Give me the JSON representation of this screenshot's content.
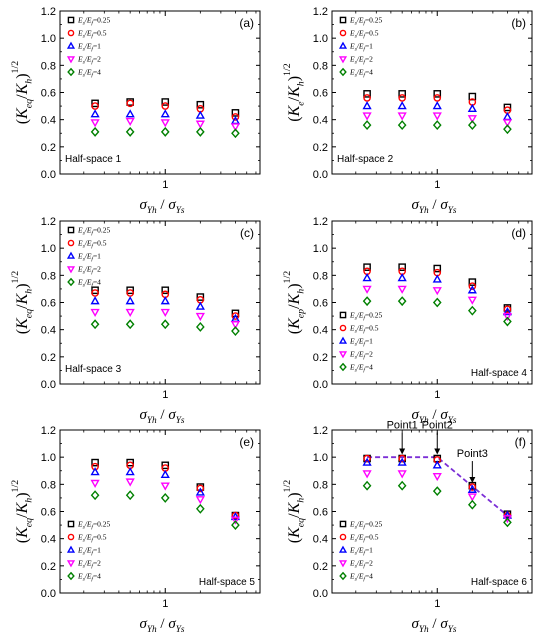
{
  "figure": {
    "colors": {
      "black": "#000000",
      "red": "#ff0000",
      "blue": "#0000ff",
      "magenta": "#ff00ff",
      "green": "#008000",
      "trend": "#7b2fd6"
    }
  },
  "chart_data": [
    {
      "panel": "(a)",
      "type": "scatter",
      "x": [
        0.25,
        0.5,
        1,
        2,
        4
      ],
      "xtick_labels": [
        "1"
      ],
      "ylim": [
        0,
        1.2
      ],
      "yticks": [
        "0.0",
        "0.2",
        "0.4",
        "0.6",
        "0.8",
        "1.0",
        "1.2"
      ],
      "ylabel": {
        "open": "(",
        "K": "K",
        "sub1": "eq",
        "slash": "/",
        "K2": "K",
        "sub2": "h",
        "close": ")",
        "exp": "1/2"
      },
      "xlabel": {
        "s1": "σ",
        "sub1": "Yh",
        "slash": " / ",
        "s2": "σ",
        "sub2": "Ys"
      },
      "legend_position": "top-left",
      "legend": [
        "E_s/E_f=0.25",
        "E_s/E_f=0.5",
        "E_s/E_f=1",
        "E_s/E_f=2",
        "E_s/E_f=4"
      ],
      "note": "Half-space 1",
      "note_position": "bottom-left",
      "series": [
        {
          "name": "E_s/E_f=0.25",
          "marker": "square",
          "values": [
            0.52,
            0.53,
            0.53,
            0.51,
            0.45
          ]
        },
        {
          "name": "E_s/E_f=0.5",
          "marker": "circle",
          "values": [
            0.5,
            0.52,
            0.5,
            0.48,
            0.42
          ]
        },
        {
          "name": "E_s/E_f=1",
          "marker": "triangle-up",
          "values": [
            0.44,
            0.44,
            0.44,
            0.43,
            0.39
          ]
        },
        {
          "name": "E_s/E_f=2",
          "marker": "triangle-down",
          "values": [
            0.38,
            0.39,
            0.38,
            0.37,
            0.35
          ]
        },
        {
          "name": "E_s/E_f=4",
          "marker": "diamond",
          "values": [
            0.31,
            0.31,
            0.31,
            0.31,
            0.3
          ]
        }
      ]
    },
    {
      "panel": "(b)",
      "type": "scatter",
      "x": [
        0.25,
        0.5,
        1,
        2,
        4
      ],
      "xtick_labels": [
        "1"
      ],
      "ylim": [
        0,
        1.2
      ],
      "yticks": [
        "0.0",
        "0.2",
        "0.4",
        "0.6",
        "0.8",
        "1.0",
        "1.2"
      ],
      "ylabel": {
        "open": "(",
        "K": "K",
        "sub1": "e",
        "slash": "/",
        "K2": "K",
        "sub2": "h",
        "close": ")",
        "exp": "1/2"
      },
      "xlabel": {
        "s1": "σ",
        "sub1": "Yh",
        "slash": " / ",
        "s2": "σ",
        "sub2": "Ys"
      },
      "legend_position": "top-left",
      "legend": [
        "E_s/E_f=0.25",
        "E_s/E_f=0.5",
        "E_s/E_f=1",
        "E_s/E_f=2",
        "E_s/E_f=4"
      ],
      "note": "Half-space 2",
      "note_position": "bottom-left",
      "series": [
        {
          "name": "E_s/E_f=0.25",
          "marker": "square",
          "values": [
            0.59,
            0.59,
            0.59,
            0.57,
            0.49
          ]
        },
        {
          "name": "E_s/E_f=0.5",
          "marker": "circle",
          "values": [
            0.56,
            0.56,
            0.56,
            0.53,
            0.47
          ]
        },
        {
          "name": "E_s/E_f=1",
          "marker": "triangle-up",
          "values": [
            0.5,
            0.5,
            0.5,
            0.48,
            0.42
          ]
        },
        {
          "name": "E_s/E_f=2",
          "marker": "triangle-down",
          "values": [
            0.43,
            0.43,
            0.43,
            0.41,
            0.38
          ]
        },
        {
          "name": "E_s/E_f=4",
          "marker": "diamond",
          "values": [
            0.36,
            0.36,
            0.36,
            0.36,
            0.33
          ]
        }
      ]
    },
    {
      "panel": "(c)",
      "type": "scatter",
      "x": [
        0.25,
        0.5,
        1,
        2,
        4
      ],
      "xtick_labels": [
        "1"
      ],
      "ylim": [
        0,
        1.2
      ],
      "yticks": [
        "0.0",
        "0.2",
        "0.4",
        "0.6",
        "0.8",
        "1.0",
        "1.2"
      ],
      "ylabel": {
        "open": "(",
        "K": "K",
        "sub1": "eq",
        "slash": "/",
        "K2": "K",
        "sub2": "h",
        "close": ")",
        "exp": "1/2"
      },
      "xlabel": {
        "s1": "σ",
        "sub1": "Yh",
        "slash": " / ",
        "s2": "σ",
        "sub2": "Ys"
      },
      "legend_position": "top-left",
      "legend": [
        "E_s/E_f=0.25",
        "E_s/E_f=0.5",
        "E_s/E_f=1",
        "E_s/E_f=2",
        "E_s/E_f=4"
      ],
      "note": "Half-space 3",
      "note_position": "bottom-left",
      "series": [
        {
          "name": "E_s/E_f=0.25",
          "marker": "square",
          "values": [
            0.69,
            0.69,
            0.69,
            0.64,
            0.52
          ]
        },
        {
          "name": "E_s/E_f=0.5",
          "marker": "circle",
          "values": [
            0.67,
            0.67,
            0.66,
            0.62,
            0.5
          ]
        },
        {
          "name": "E_s/E_f=1",
          "marker": "triangle-up",
          "values": [
            0.61,
            0.61,
            0.61,
            0.57,
            0.48
          ]
        },
        {
          "name": "E_s/E_f=2",
          "marker": "triangle-down",
          "values": [
            0.53,
            0.53,
            0.53,
            0.5,
            0.44
          ]
        },
        {
          "name": "E_s/E_f=4",
          "marker": "diamond",
          "values": [
            0.44,
            0.44,
            0.44,
            0.42,
            0.39
          ]
        }
      ]
    },
    {
      "panel": "(d)",
      "type": "scatter",
      "x": [
        0.25,
        0.5,
        1,
        2,
        4
      ],
      "xtick_labels": [
        "1"
      ],
      "ylim": [
        0,
        1.2
      ],
      "yticks": [
        "0.0",
        "0.2",
        "0.4",
        "0.6",
        "0.8",
        "1.0",
        "1.2"
      ],
      "ylabel": {
        "open": "(",
        "K": "K",
        "sub1": "ep",
        "slash": "/",
        "K2": "K",
        "sub2": "h",
        "close": ")",
        "exp": "1/2"
      },
      "xlabel": {
        "s1": "σ",
        "sub1": "Yh",
        "slash": " / ",
        "s2": "σ",
        "sub2": "Ys"
      },
      "legend_position": "bottom-left",
      "legend": [
        "E_s/E_f=0.25",
        "E_s/E_f=0.5",
        "E_s/E_f=1",
        "E_s/E_f=2",
        "E_s/E_f=4"
      ],
      "note": "Half-space 4",
      "note_position": "bottom-right",
      "series": [
        {
          "name": "E_s/E_f=0.25",
          "marker": "square",
          "values": [
            0.86,
            0.86,
            0.85,
            0.75,
            0.56
          ]
        },
        {
          "name": "E_s/E_f=0.5",
          "marker": "circle",
          "values": [
            0.83,
            0.83,
            0.82,
            0.72,
            0.55
          ]
        },
        {
          "name": "E_s/E_f=1",
          "marker": "triangle-up",
          "values": [
            0.78,
            0.78,
            0.77,
            0.69,
            0.53
          ]
        },
        {
          "name": "E_s/E_f=2",
          "marker": "triangle-down",
          "values": [
            0.7,
            0.7,
            0.69,
            0.62,
            0.5
          ]
        },
        {
          "name": "E_s/E_f=4",
          "marker": "diamond",
          "values": [
            0.61,
            0.61,
            0.6,
            0.54,
            0.46
          ]
        }
      ]
    },
    {
      "panel": "(e)",
      "type": "scatter",
      "x": [
        0.25,
        0.5,
        1,
        2,
        4
      ],
      "xtick_labels": [
        "1"
      ],
      "ylim": [
        0,
        1.2
      ],
      "yticks": [
        "0.0",
        "0.2",
        "0.4",
        "0.6",
        "0.8",
        "1.0",
        "1.2"
      ],
      "ylabel": {
        "open": "(",
        "K": "K",
        "sub1": "eq",
        "slash": "/",
        "K2": "K",
        "sub2": "h",
        "close": ")",
        "exp": "1/2"
      },
      "xlabel": {
        "s1": "σ",
        "sub1": "Yh",
        "slash": " / ",
        "s2": "σ",
        "sub2": "Ys"
      },
      "legend_position": "bottom-left",
      "legend": [
        "E_s/E_f=0.25",
        "E_s/E_f=0.5",
        "E_s/E_f=1",
        "E_s/E_f=2",
        "E_s/E_f=4"
      ],
      "note": "Half-space 5",
      "note_position": "bottom-right",
      "series": [
        {
          "name": "E_s/E_f=0.25",
          "marker": "square",
          "values": [
            0.96,
            0.96,
            0.94,
            0.78,
            0.57
          ]
        },
        {
          "name": "E_s/E_f=0.5",
          "marker": "circle",
          "values": [
            0.93,
            0.94,
            0.92,
            0.77,
            0.57
          ]
        },
        {
          "name": "E_s/E_f=1",
          "marker": "triangle-up",
          "values": [
            0.89,
            0.89,
            0.87,
            0.74,
            0.56
          ]
        },
        {
          "name": "E_s/E_f=2",
          "marker": "triangle-down",
          "values": [
            0.81,
            0.82,
            0.79,
            0.69,
            0.54
          ]
        },
        {
          "name": "E_s/E_f=4",
          "marker": "diamond",
          "values": [
            0.72,
            0.72,
            0.7,
            0.62,
            0.5
          ]
        }
      ]
    },
    {
      "panel": "(f)",
      "type": "scatter",
      "x": [
        0.25,
        0.5,
        1,
        2,
        4
      ],
      "xtick_labels": [
        "1"
      ],
      "ylim": [
        0,
        1.2
      ],
      "yticks": [
        "0.0",
        "0.2",
        "0.4",
        "0.6",
        "0.8",
        "1.0",
        "1.2"
      ],
      "ylabel": {
        "open": "(",
        "K": "K",
        "sub1": "eq",
        "slash": "/",
        "K2": "K",
        "sub2": "h",
        "close": ")",
        "exp": "1/2"
      },
      "xlabel": {
        "s1": "σ",
        "sub1": "Yh",
        "slash": " / ",
        "s2": "σ",
        "sub2": "Ys"
      },
      "legend_position": "bottom-left",
      "legend": [
        "E_s/E_f=0.25",
        "E_s/E_f=0.5",
        "E_s/E_f=1",
        "E_s/E_f=2",
        "E_s/E_f=4"
      ],
      "note": "Half-space 6",
      "note_position": "bottom-right",
      "series": [
        {
          "name": "E_s/E_f=0.25",
          "marker": "square",
          "values": [
            0.99,
            0.99,
            0.99,
            0.79,
            0.58
          ]
        },
        {
          "name": "E_s/E_f=0.5",
          "marker": "circle",
          "values": [
            0.99,
            0.99,
            0.98,
            0.78,
            0.57
          ]
        },
        {
          "name": "E_s/E_f=1",
          "marker": "triangle-up",
          "values": [
            0.96,
            0.96,
            0.94,
            0.76,
            0.57
          ]
        },
        {
          "name": "E_s/E_f=2",
          "marker": "triangle-down",
          "values": [
            0.88,
            0.88,
            0.86,
            0.71,
            0.55
          ]
        },
        {
          "name": "E_s/E_f=4",
          "marker": "diamond",
          "values": [
            0.79,
            0.79,
            0.75,
            0.65,
            0.52
          ]
        }
      ],
      "trend_line": {
        "x": [
          0.25,
          1,
          4
        ],
        "y": [
          1.0,
          1.0,
          0.57
        ],
        "style": "dashed"
      },
      "annotations": [
        {
          "text": "Point1",
          "x": 0.5,
          "y": 0.99
        },
        {
          "text": "Point2",
          "x": 1,
          "y": 0.99
        },
        {
          "text": "Point3",
          "x": 2,
          "y": 0.78
        }
      ]
    }
  ]
}
